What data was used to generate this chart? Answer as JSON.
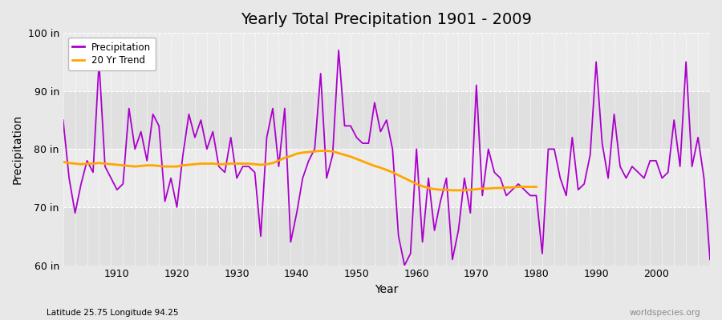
{
  "title": "Yearly Total Precipitation 1901 - 2009",
  "xlabel": "Year",
  "ylabel": "Precipitation",
  "subtitle": "Latitude 25.75 Longitude 94.25",
  "watermark": "worldspecies.org",
  "ylim": [
    60,
    100
  ],
  "yticks": [
    60,
    70,
    80,
    90,
    100
  ],
  "ytick_labels": [
    "60 in",
    "70 in",
    "80 in",
    "90 in",
    "100 in"
  ],
  "xlim": [
    1901,
    2009
  ],
  "xticks": [
    1910,
    1920,
    1930,
    1940,
    1950,
    1960,
    1970,
    1980,
    1990,
    2000
  ],
  "precip_color": "#AA00CC",
  "trend_color": "#FFA500",
  "bg_color": "#E8E8E8",
  "plot_bg_light": "#EBEBEB",
  "plot_bg_dark": "#E0E0E0",
  "years": [
    1901,
    1902,
    1903,
    1904,
    1905,
    1906,
    1907,
    1908,
    1909,
    1910,
    1911,
    1912,
    1913,
    1914,
    1915,
    1916,
    1917,
    1918,
    1919,
    1920,
    1921,
    1922,
    1923,
    1924,
    1925,
    1926,
    1927,
    1928,
    1929,
    1930,
    1931,
    1932,
    1933,
    1934,
    1935,
    1936,
    1937,
    1938,
    1939,
    1940,
    1941,
    1942,
    1943,
    1944,
    1945,
    1946,
    1947,
    1948,
    1949,
    1950,
    1951,
    1952,
    1953,
    1954,
    1955,
    1956,
    1957,
    1958,
    1959,
    1960,
    1961,
    1962,
    1963,
    1964,
    1965,
    1966,
    1967,
    1968,
    1969,
    1970,
    1971,
    1972,
    1973,
    1974,
    1975,
    1976,
    1977,
    1978,
    1979,
    1980,
    1981,
    1982,
    1983,
    1984,
    1985,
    1986,
    1987,
    1988,
    1989,
    1990,
    1991,
    1992,
    1993,
    1994,
    1995,
    1996,
    1997,
    1998,
    1999,
    2000,
    2001,
    2002,
    2003,
    2004,
    2005,
    2006,
    2007,
    2008,
    2009
  ],
  "precipitation": [
    85,
    75,
    69,
    74,
    78,
    76,
    95,
    77,
    75,
    73,
    74,
    87,
    80,
    83,
    78,
    86,
    84,
    71,
    75,
    70,
    79,
    86,
    82,
    85,
    80,
    83,
    77,
    76,
    82,
    75,
    77,
    77,
    76,
    65,
    82,
    87,
    77,
    87,
    64,
    69,
    75,
    78,
    80,
    93,
    75,
    79,
    97,
    84,
    84,
    82,
    81,
    81,
    88,
    83,
    85,
    80,
    65,
    60,
    62,
    80,
    64,
    75,
    66,
    71,
    75,
    61,
    66,
    75,
    69,
    91,
    72,
    80,
    76,
    75,
    72,
    73,
    74,
    73,
    72,
    72,
    62,
    80,
    80,
    75,
    72,
    82,
    73,
    74,
    79,
    95,
    81,
    75,
    86,
    77,
    75,
    77,
    76,
    75,
    78,
    78,
    75,
    76,
    85,
    77,
    95,
    77,
    82,
    75,
    61
  ],
  "trend": [
    77.8,
    77.6,
    77.5,
    77.4,
    77.5,
    77.5,
    77.6,
    77.5,
    77.4,
    77.3,
    77.2,
    77.1,
    77.0,
    77.1,
    77.2,
    77.2,
    77.1,
    77.0,
    77.0,
    77.0,
    77.2,
    77.3,
    77.4,
    77.5,
    77.5,
    77.5,
    77.4,
    77.4,
    77.5,
    77.5,
    77.5,
    77.5,
    77.4,
    77.3,
    77.4,
    77.6,
    78.0,
    78.5,
    78.8,
    79.2,
    79.4,
    79.5,
    79.6,
    79.7,
    79.7,
    79.6,
    79.3,
    79.0,
    78.7,
    78.3,
    77.9,
    77.5,
    77.1,
    76.8,
    76.4,
    76.0,
    75.5,
    75.0,
    74.5,
    74.0,
    73.6,
    73.3,
    73.1,
    73.0,
    73.0,
    72.9,
    72.9,
    72.9,
    73.0,
    73.1,
    73.2,
    73.2,
    73.3,
    73.3,
    73.4,
    73.4,
    73.5,
    73.5,
    73.5,
    73.5,
    null,
    null,
    null,
    null,
    null,
    null,
    null,
    null,
    null,
    null,
    null,
    null,
    null,
    null,
    null,
    null,
    null,
    null,
    null,
    null,
    null,
    null,
    null,
    null,
    null,
    null,
    null,
    null,
    null
  ]
}
